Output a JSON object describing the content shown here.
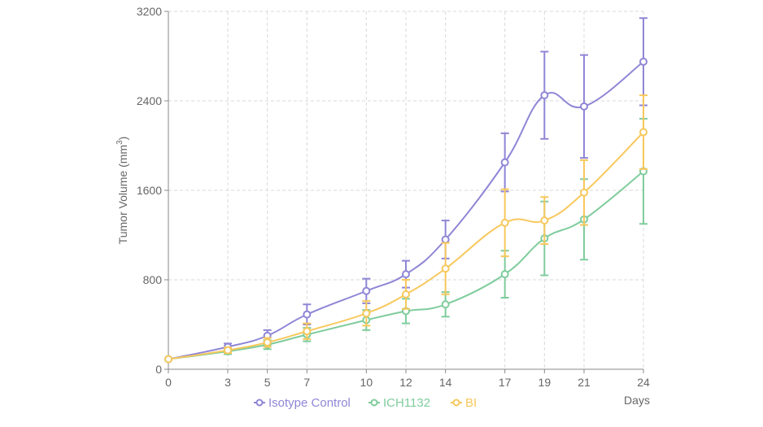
{
  "chart_data": {
    "type": "line",
    "x": [
      0,
      3,
      5,
      7,
      10,
      12,
      14,
      17,
      19,
      21,
      24
    ],
    "xlabel": "Days",
    "ylabel_base": "Tumor Volume (mm",
    "ylabel_sup": "3",
    "ylabel_close": ")",
    "ylim": [
      0,
      3200
    ],
    "yticks": [
      0,
      800,
      1600,
      2400,
      3200
    ],
    "grid": true,
    "legend_position": "bottom",
    "series": [
      {
        "name": "Isotype Control",
        "color": "#8f86d6",
        "values": [
          90,
          200,
          300,
          490,
          700,
          850,
          1160,
          1850,
          2450,
          2350,
          2750
        ],
        "errors": [
          0,
          30,
          50,
          90,
          110,
          120,
          170,
          260,
          390,
          460,
          390
        ]
      },
      {
        "name": "ICH1132",
        "color": "#7fcc9c",
        "values": [
          90,
          160,
          220,
          310,
          440,
          520,
          580,
          850,
          1170,
          1340,
          1770
        ],
        "errors": [
          0,
          25,
          40,
          60,
          90,
          110,
          110,
          210,
          330,
          360,
          470
        ]
      },
      {
        "name": "BI",
        "color": "#f7c85c",
        "values": [
          90,
          170,
          240,
          340,
          500,
          670,
          900,
          1310,
          1330,
          1580,
          2120
        ],
        "errors": [
          0,
          25,
          40,
          70,
          110,
          130,
          230,
          300,
          210,
          290,
          330
        ]
      }
    ]
  }
}
